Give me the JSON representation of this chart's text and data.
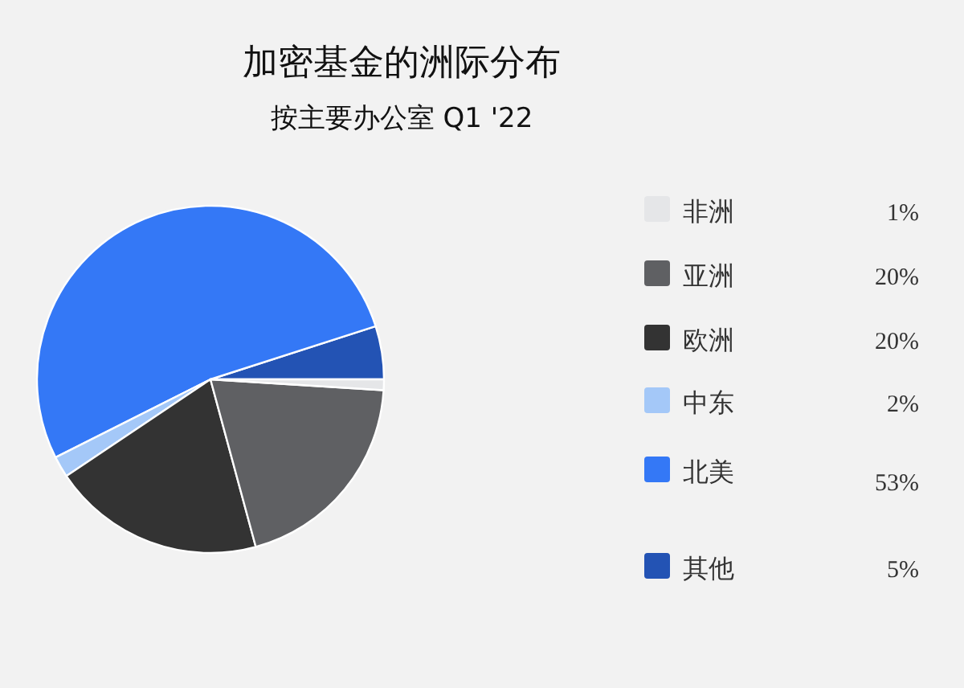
{
  "chart_data": {
    "type": "pie",
    "title": "加密基金的洲际分布",
    "subtitle": "按主要办公室 Q1 '22",
    "categories": [
      "非洲",
      "亚洲",
      "欧洲",
      "中东",
      "北美",
      "其他"
    ],
    "values": [
      1,
      20,
      20,
      2,
      53,
      5
    ],
    "colors": [
      "#e5e6e8",
      "#5f6063",
      "#333333",
      "#a4c8f8",
      "#3478f6",
      "#2353b4"
    ],
    "value_labels": [
      "1%",
      "20%",
      "20%",
      "2%",
      "53%",
      "5%"
    ],
    "legend": "right"
  }
}
